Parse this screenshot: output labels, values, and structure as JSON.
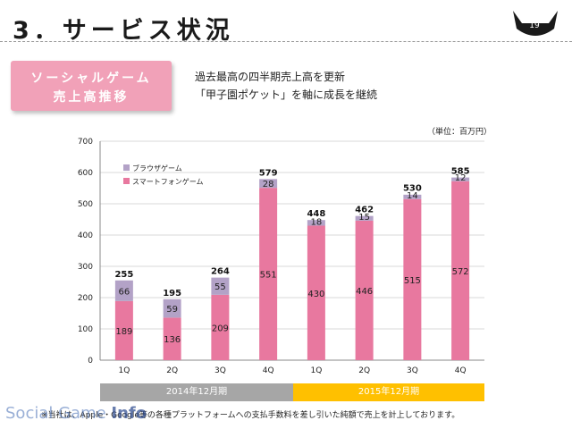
{
  "slide": {
    "title": "3．サービス状況",
    "page_number": "19"
  },
  "badge": {
    "line1": "ソーシャルゲーム",
    "line2": "売上高推移"
  },
  "summary": {
    "line1": "過去最高の四半期売上高を更新",
    "line2": "「甲子園ポケット」を軸に成長を継続"
  },
  "unit_note": "（単位：百万円）",
  "periods": {
    "p2014": "2014年12月期",
    "p2015": "2015年12月期"
  },
  "footnote": "※当社は、Apple・Google等の各種プラットフォームへの支払手数料を差し引いた純額で売上を計上しております。",
  "watermark": {
    "text": "Social Game ",
    "bold": "Info"
  },
  "colors": {
    "smartphone": "#e8789f",
    "browser": "#b3a2c7",
    "period_2014": "#a6a6a6",
    "period_2015": "#ffc000",
    "badge": "#f1a1b8"
  },
  "chart_data": {
    "type": "bar",
    "stacked": true,
    "categories": [
      "1Q",
      "2Q",
      "3Q",
      "4Q",
      "1Q",
      "2Q",
      "3Q",
      "4Q"
    ],
    "series": [
      {
        "name": "スマートフォンゲーム",
        "values": [
          189,
          136,
          209,
          551,
          430,
          446,
          515,
          572
        ],
        "color": "#e8789f"
      },
      {
        "name": "ブラウザゲーム",
        "values": [
          66,
          59,
          55,
          28,
          18,
          15,
          14,
          12
        ],
        "color": "#b3a2c7"
      }
    ],
    "totals": [
      255,
      195,
      264,
      579,
      448,
      462,
      530,
      585
    ],
    "ylim": [
      0,
      700
    ],
    "yticks": [
      0,
      100,
      200,
      300,
      400,
      500,
      600,
      700
    ],
    "grid": true,
    "legend_position": "top-left",
    "xlabel": "",
    "ylabel": ""
  }
}
